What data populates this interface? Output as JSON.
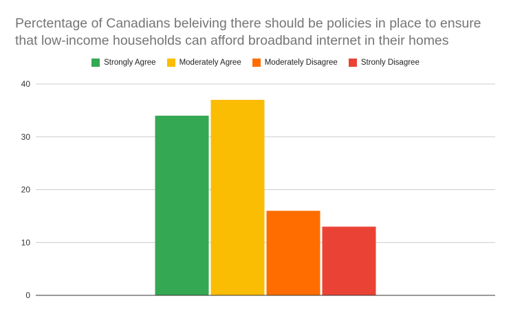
{
  "chart_data": {
    "type": "bar",
    "title": "Percentage of Canadians beleiving there should be policies in place to ensure that low-income households can afford broadband internet in their homes",
    "title_lines": [
      "Perctentage of Canadians beleiving there should be policies in place to ensure",
      "that low-income households can afford broadband internet in their homes"
    ],
    "categories": [
      ""
    ],
    "series": [
      {
        "name": "Strongly Agree",
        "color": "#34a853",
        "values": [
          34
        ]
      },
      {
        "name": "Moderately Agree",
        "color": "#fbbc04",
        "values": [
          37
        ]
      },
      {
        "name": "Moderately Disagree",
        "color": "#ff6d01",
        "values": [
          16
        ]
      },
      {
        "name": "Stronly Disagree",
        "color": "#ea4335",
        "values": [
          13
        ]
      }
    ],
    "ylim": [
      0,
      40
    ],
    "yticks": [
      "0",
      "10",
      "20",
      "30",
      "40"
    ],
    "xlabel": "",
    "ylabel": "",
    "grid": true,
    "legend_position": "top"
  }
}
